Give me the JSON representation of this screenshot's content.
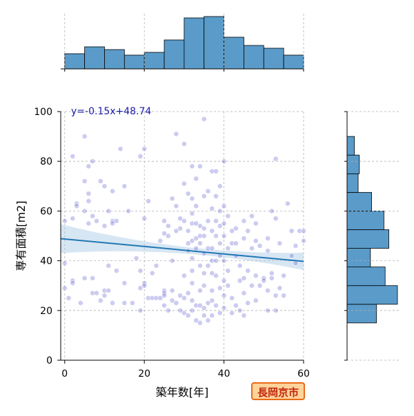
{
  "chart_data": {
    "type": "scatter",
    "xlabel": "築年数[年]",
    "ylabel": "専有面積[m2]",
    "xlim": [
      -1,
      60
    ],
    "ylim": [
      0,
      100
    ],
    "x_ticks": [
      0,
      20,
      40,
      60
    ],
    "y_ticks": [
      0,
      20,
      40,
      60,
      80,
      100
    ],
    "grid": true,
    "regression": {
      "label": "y=-0.15x+48.74",
      "slope": -0.15,
      "intercept": 48.74
    },
    "colors": {
      "points": "#5555cc",
      "line": "#1f77b4",
      "band": "#a6c8e4",
      "hist": "#5a9bc9",
      "label": "#1a1aaa"
    },
    "points": [
      [
        0,
        56
      ],
      [
        0,
        39
      ],
      [
        0,
        29
      ],
      [
        1,
        25
      ],
      [
        2,
        82
      ],
      [
        2,
        32
      ],
      [
        2,
        31
      ],
      [
        2,
        57
      ],
      [
        3,
        63
      ],
      [
        3,
        62
      ],
      [
        4,
        23
      ],
      [
        5,
        90
      ],
      [
        5,
        72
      ],
      [
        5,
        60
      ],
      [
        5,
        33
      ],
      [
        6,
        67
      ],
      [
        6,
        64
      ],
      [
        6,
        78
      ],
      [
        6,
        55
      ],
      [
        7,
        80
      ],
      [
        7,
        58
      ],
      [
        7,
        33
      ],
      [
        7,
        27
      ],
      [
        8,
        27
      ],
      [
        8,
        56
      ],
      [
        9,
        72
      ],
      [
        9,
        24
      ],
      [
        10,
        26
      ],
      [
        10,
        28
      ],
      [
        10,
        70
      ],
      [
        10,
        54
      ],
      [
        11,
        38
      ],
      [
        11,
        28
      ],
      [
        11,
        60
      ],
      [
        12,
        56
      ],
      [
        12,
        55
      ],
      [
        12,
        23
      ],
      [
        12,
        68
      ],
      [
        13,
        36
      ],
      [
        13,
        56
      ],
      [
        14,
        85
      ],
      [
        15,
        70
      ],
      [
        15,
        31
      ],
      [
        15,
        23
      ],
      [
        16,
        60
      ],
      [
        17,
        23
      ],
      [
        18,
        41
      ],
      [
        19,
        20
      ],
      [
        19,
        82
      ],
      [
        19,
        36
      ],
      [
        19,
        29
      ],
      [
        20,
        85
      ],
      [
        20,
        57
      ],
      [
        20,
        31
      ],
      [
        20,
        30
      ],
      [
        21,
        64
      ],
      [
        21,
        25
      ],
      [
        22,
        35
      ],
      [
        22,
        25
      ],
      [
        23,
        38
      ],
      [
        23,
        25
      ],
      [
        24,
        48
      ],
      [
        24,
        25
      ],
      [
        25,
        56
      ],
      [
        25,
        51
      ],
      [
        25,
        28
      ],
      [
        25,
        27
      ],
      [
        25,
        26
      ],
      [
        25,
        22
      ],
      [
        26,
        54
      ],
      [
        26,
        50
      ],
      [
        26,
        20
      ],
      [
        27,
        65
      ],
      [
        27,
        40
      ],
      [
        27,
        28
      ],
      [
        27,
        24
      ],
      [
        28,
        62
      ],
      [
        28,
        91
      ],
      [
        28,
        52
      ],
      [
        28,
        23
      ],
      [
        29,
        57
      ],
      [
        29,
        53
      ],
      [
        29,
        26
      ],
      [
        29,
        20
      ],
      [
        30,
        87
      ],
      [
        30,
        71
      ],
      [
        30,
        56
      ],
      [
        30,
        34
      ],
      [
        30,
        25
      ],
      [
        30,
        19
      ],
      [
        31,
        67
      ],
      [
        31,
        52
      ],
      [
        31,
        47
      ],
      [
        31,
        44
      ],
      [
        31,
        27
      ],
      [
        31,
        18
      ],
      [
        32,
        78
      ],
      [
        32,
        65
      ],
      [
        32,
        59
      ],
      [
        32,
        55
      ],
      [
        32,
        48
      ],
      [
        32,
        41
      ],
      [
        32,
        36
      ],
      [
        32,
        31
      ],
      [
        32,
        24
      ],
      [
        32,
        20
      ],
      [
        33,
        73
      ],
      [
        33,
        62
      ],
      [
        33,
        55
      ],
      [
        33,
        49
      ],
      [
        33,
        45
      ],
      [
        33,
        22
      ],
      [
        33,
        16
      ],
      [
        34,
        78
      ],
      [
        34,
        54
      ],
      [
        34,
        50
      ],
      [
        34,
        47
      ],
      [
        34,
        38
      ],
      [
        34,
        28
      ],
      [
        34,
        22
      ],
      [
        34,
        15
      ],
      [
        35,
        97
      ],
      [
        35,
        66
      ],
      [
        35,
        53
      ],
      [
        35,
        50
      ],
      [
        35,
        43
      ],
      [
        35,
        35
      ],
      [
        35,
        30
      ],
      [
        35,
        21
      ],
      [
        35,
        18
      ],
      [
        36,
        68
      ],
      [
        36,
        56
      ],
      [
        36,
        45
      ],
      [
        36,
        38
      ],
      [
        36,
        23
      ],
      [
        36,
        16
      ],
      [
        37,
        76
      ],
      [
        37,
        61
      ],
      [
        37,
        52
      ],
      [
        37,
        45
      ],
      [
        37,
        40
      ],
      [
        37,
        35
      ],
      [
        37,
        28
      ],
      [
        37,
        24
      ],
      [
        37,
        18
      ],
      [
        38,
        76
      ],
      [
        38,
        66
      ],
      [
        38,
        56
      ],
      [
        38,
        50
      ],
      [
        38,
        40
      ],
      [
        38,
        34
      ],
      [
        38,
        22
      ],
      [
        39,
        70
      ],
      [
        39,
        60
      ],
      [
        39,
        54
      ],
      [
        39,
        47
      ],
      [
        39,
        42
      ],
      [
        39,
        29
      ],
      [
        39,
        19
      ],
      [
        40,
        80
      ],
      [
        40,
        62
      ],
      [
        40,
        55
      ],
      [
        40,
        50
      ],
      [
        40,
        40
      ],
      [
        40,
        32
      ],
      [
        40,
        26
      ],
      [
        40,
        21
      ],
      [
        41,
        58
      ],
      [
        41,
        45
      ],
      [
        41,
        36
      ],
      [
        41,
        30
      ],
      [
        42,
        52
      ],
      [
        42,
        47
      ],
      [
        42,
        25
      ],
      [
        42,
        19
      ],
      [
        43,
        53
      ],
      [
        43,
        47
      ],
      [
        43,
        42
      ],
      [
        43,
        22
      ],
      [
        44,
        38
      ],
      [
        44,
        32
      ],
      [
        44,
        20
      ],
      [
        45,
        56
      ],
      [
        45,
        49
      ],
      [
        45,
        33
      ],
      [
        45,
        27
      ],
      [
        45,
        18
      ],
      [
        46,
        52
      ],
      [
        46,
        36
      ],
      [
        46,
        23
      ],
      [
        47,
        58
      ],
      [
        47,
        45
      ],
      [
        47,
        30
      ],
      [
        48,
        55
      ],
      [
        48,
        48
      ],
      [
        48,
        34
      ],
      [
        48,
        24
      ],
      [
        49,
        46
      ],
      [
        49,
        30
      ],
      [
        50,
        33
      ],
      [
        50,
        32
      ],
      [
        51,
        49
      ],
      [
        51,
        44
      ],
      [
        51,
        28
      ],
      [
        51,
        20
      ],
      [
        52,
        60
      ],
      [
        52,
        35
      ],
      [
        52,
        33
      ],
      [
        53,
        81
      ],
      [
        53,
        57
      ],
      [
        53,
        26
      ],
      [
        53,
        20
      ],
      [
        54,
        47
      ],
      [
        54,
        29
      ],
      [
        55,
        34
      ],
      [
        55,
        26
      ],
      [
        56,
        63
      ],
      [
        57,
        52
      ],
      [
        57,
        42
      ],
      [
        58,
        46
      ],
      [
        58,
        39
      ],
      [
        59,
        52
      ],
      [
        60,
        52
      ],
      [
        60,
        48
      ]
    ]
  }
}
